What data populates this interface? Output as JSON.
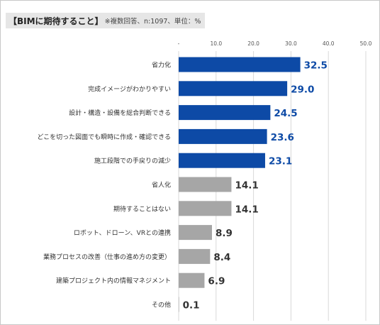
{
  "chart_data": {
    "type": "bar",
    "orientation": "horizontal",
    "title": "【BIMに期待すること】",
    "subtitle": "※複数回答、n:1097、単位：%",
    "tick_labels": [
      "-",
      "10.0",
      "20.0",
      "30.0",
      "40.0",
      "50.0"
    ],
    "xlim": [
      0,
      50
    ],
    "grid": true,
    "categories": [
      "省力化",
      "完成イメージがわかりやすい",
      "設計・構造・設備を総合判断できる",
      "どこを切った図面でも瞬時に作成・確認できる",
      "施工段階での手戻りの減少",
      "省人化",
      "期待することはない",
      "ロボット、ドローン、VRとの連携",
      "業務プロセスの改善（仕事の進め方の変更）",
      "建築プロジェクト内の情報マネジメント",
      "その他"
    ],
    "values": [
      32.5,
      29.0,
      24.5,
      23.6,
      23.1,
      14.1,
      14.1,
      8.9,
      8.4,
      6.9,
      0.1
    ],
    "value_labels": [
      "32.5",
      "29.0",
      "24.5",
      "23.6",
      "23.1",
      "14.1",
      "14.1",
      "8.9",
      "8.4",
      "6.9",
      "0.1"
    ],
    "highlight_count": 5,
    "colors": {
      "highlight": "#0d4aa6",
      "highlight_label": "#0d4aa6",
      "normal": "#a6a6a6",
      "normal_label": "#333333",
      "grid": "#d9d9d9"
    }
  }
}
